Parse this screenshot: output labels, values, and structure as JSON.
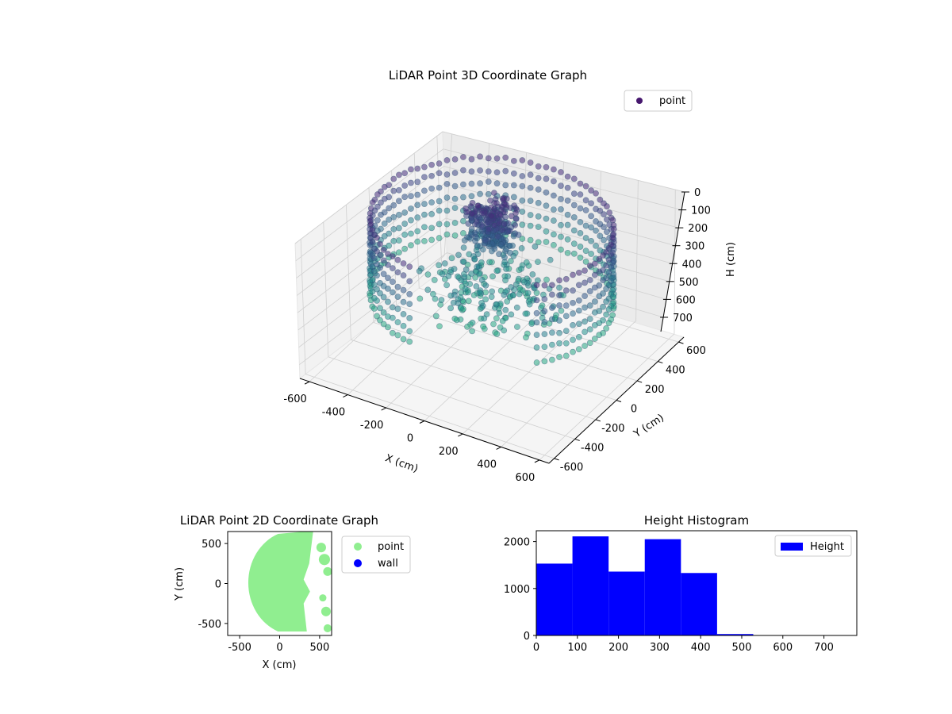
{
  "chart_data": [
    {
      "type": "scatter",
      "projection": "3d",
      "title": "LiDAR Point 3D Coordinate Graph",
      "xlabel": "X (cm)",
      "ylabel": "Y (cm)",
      "zlabel": "H (cm)",
      "x_ticks": [
        -600,
        -400,
        -200,
        0,
        200,
        400,
        600
      ],
      "y_ticks": [
        -600,
        -400,
        -200,
        0,
        200,
        400,
        600
      ],
      "z_ticks": [
        0,
        100,
        200,
        300,
        400,
        500,
        600,
        700
      ],
      "xlim": [
        -650,
        650
      ],
      "ylim": [
        -650,
        650
      ],
      "zlim": [
        0,
        780
      ],
      "z_inverted": true,
      "colormap": "viridis",
      "legend": [
        "point"
      ],
      "legend_position": "upper right",
      "legend_marker_color": "#46176e",
      "grid": true
    },
    {
      "type": "scatter",
      "title": "LiDAR Point 2D Coordinate Graph",
      "xlabel": "X (cm)",
      "ylabel": "Y (cm)",
      "x_ticks": [
        -500,
        0,
        500
      ],
      "y_ticks": [
        -500,
        0,
        500
      ],
      "xlim": [
        -650,
        650
      ],
      "ylim": [
        -650,
        650
      ],
      "series": [
        {
          "name": "point",
          "color": "#90ee90"
        },
        {
          "name": "wall",
          "color": "#0000ff"
        }
      ],
      "legend_position": "outside upper right"
    },
    {
      "type": "bar",
      "subtype": "histogram",
      "title": "Height Histogram",
      "x_ticks": [
        0,
        100,
        200,
        300,
        400,
        500,
        600,
        700
      ],
      "y_ticks": [
        0,
        1000,
        2000
      ],
      "xlim": [
        0,
        780
      ],
      "ylim": [
        0,
        2230
      ],
      "bin_edges": [
        0,
        88,
        176,
        264,
        352,
        440,
        528
      ],
      "values": [
        1530,
        2110,
        1360,
        2050,
        1330,
        30
      ],
      "series": [
        {
          "name": "Height",
          "color": "#0000ff"
        }
      ],
      "legend_position": "upper right",
      "grid": false
    }
  ]
}
